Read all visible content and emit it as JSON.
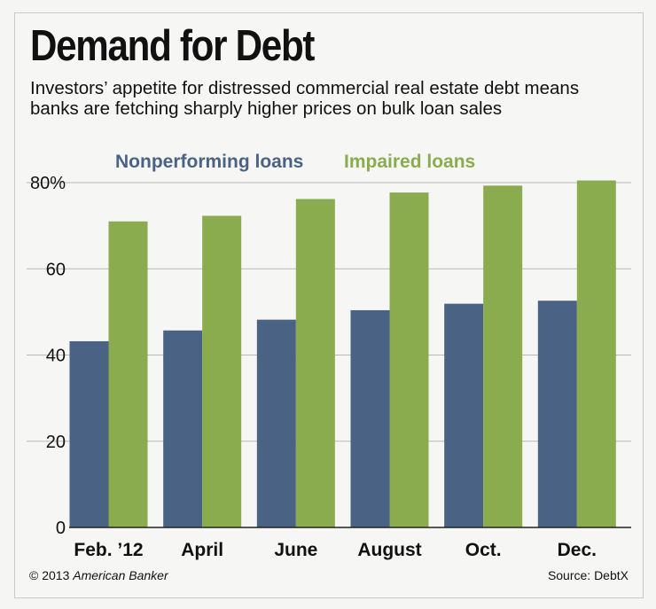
{
  "title": "Demand for Debt",
  "subtitle": "Investors’ appetite for distressed commercial real estate debt means banks are fetching sharply higher prices on bulk loan sales",
  "footer": {
    "copyright": "© 2013",
    "publisher": "American Banker",
    "source": "Source: DebtX"
  },
  "colors": {
    "nonperforming": "#4a6283",
    "impaired": "#8aab4e",
    "grid": "#b8b8b4"
  },
  "chart_data": {
    "type": "bar",
    "title": "Demand for Debt",
    "xlabel": "",
    "ylabel": "",
    "ylim": [
      0,
      80
    ],
    "yticks": [
      "0",
      "20",
      "40",
      "60",
      "80%"
    ],
    "categories": [
      "Feb. ’12",
      "April",
      "June",
      "August",
      "Oct.",
      "Dec."
    ],
    "series": [
      {
        "name": "Nonperforming loans",
        "values": [
          43.2,
          45.7,
          48.2,
          50.4,
          51.9,
          52.6
        ]
      },
      {
        "name": "Impaired loans",
        "values": [
          71.0,
          72.3,
          76.2,
          77.7,
          79.3,
          80.5
        ]
      }
    ],
    "legend_position": "top"
  }
}
